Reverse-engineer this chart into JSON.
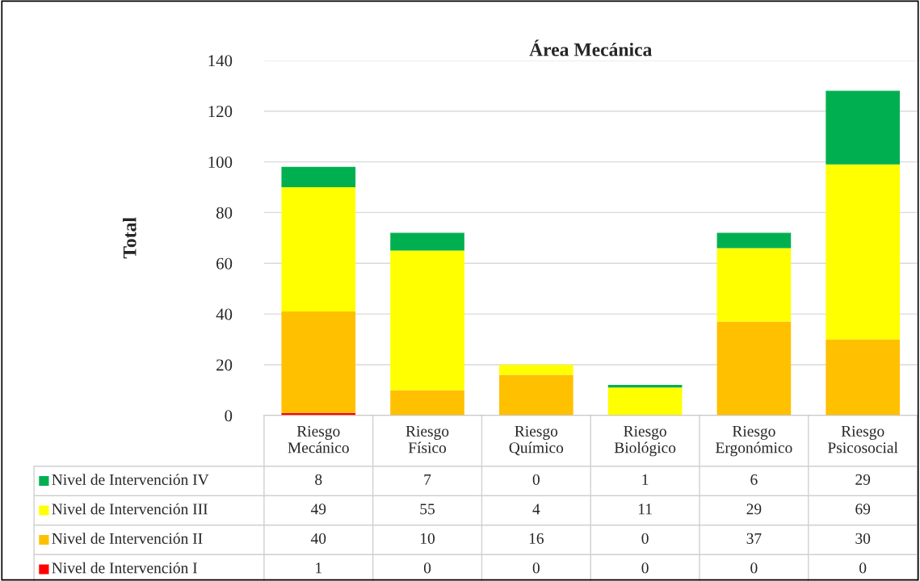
{
  "chart_data": {
    "type": "bar",
    "title": "Área Mecánica",
    "ylabel": "Total",
    "stacked": true,
    "categories": [
      "Riesgo Mecánico",
      "Riesgo Físico",
      "Riesgo Químico",
      "Riesgo Biológico",
      "Riesgo Ergonómico",
      "Riesgo Psicosocial"
    ],
    "series": [
      {
        "name": "Nivel de Intervención I",
        "color": "#ff0000",
        "values": [
          1,
          0,
          0,
          0,
          0,
          0
        ]
      },
      {
        "name": "Nivel de Intervención II",
        "color": "#ffc000",
        "values": [
          40,
          10,
          16,
          0,
          37,
          30
        ]
      },
      {
        "name": "Nivel de Intervención III",
        "color": "#ffff00",
        "values": [
          49,
          55,
          4,
          11,
          29,
          69
        ]
      },
      {
        "name": "Nivel de Intervención IV",
        "color": "#00b050",
        "values": [
          8,
          7,
          0,
          1,
          6,
          29
        ]
      }
    ],
    "ylim": [
      0,
      140
    ],
    "yticks": [
      0,
      20,
      40,
      60,
      80,
      100,
      120,
      140
    ],
    "grid": "y",
    "legend": "bottom",
    "data_labels": true
  }
}
